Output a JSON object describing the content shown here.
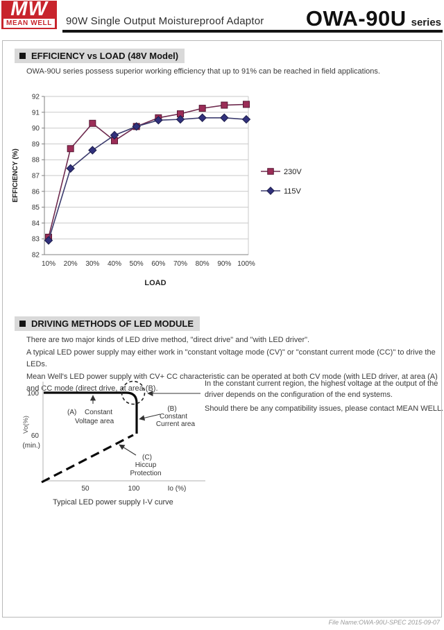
{
  "header": {
    "logo_mark": "MW",
    "logo_name": "MEAN WELL",
    "subtitle": "90W Single Output Moistureproof Adaptor",
    "product": "OWA-90U",
    "series": "series"
  },
  "colors": {
    "brand_red": "#c8242c",
    "series_230v": "#9b2d57",
    "series_115v": "#31317c",
    "grid": "#c9c9c9",
    "axis": "#808080"
  },
  "section_efficiency": {
    "title": "EFFICIENCY vs LOAD (48V Model)",
    "description": "OWA-90U series possess superior working efficiency that up to 91% can be reached in field applications."
  },
  "chart_data": {
    "type": "line",
    "title": "",
    "xlabel": "LOAD",
    "ylabel": "EFFICIENCY (%)",
    "ylim": [
      82,
      92
    ],
    "ytick_step": 1,
    "grid": true,
    "legend_position": "right",
    "categories": [
      "10%",
      "20%",
      "30%",
      "40%",
      "50%",
      "60%",
      "70%",
      "80%",
      "90%",
      "100%"
    ],
    "series": [
      {
        "name": "230V",
        "marker": "square",
        "color": "#9b2d57",
        "edge": "#571733",
        "line_color": "#6e2a4e",
        "values": [
          83.1,
          88.7,
          90.3,
          89.2,
          90.1,
          90.65,
          90.9,
          91.25,
          91.45,
          91.5
        ]
      },
      {
        "name": "115V",
        "marker": "diamond",
        "color": "#31317c",
        "edge": "#1c1c4a",
        "line_color": "#3c3c6e",
        "values": [
          82.9,
          87.45,
          88.6,
          89.55,
          90.1,
          90.5,
          90.55,
          90.65,
          90.65,
          90.55
        ]
      }
    ]
  },
  "section_driving": {
    "title": "DRIVING METHODS OF LED MODULE",
    "lines": [
      "There are two major kinds of LED drive method, \"direct drive\" and \"with LED driver\".",
      "A typical LED power supply may either work in \"constant voltage mode (CV)\" or \"constant current mode (CC)\" to drive the LEDs.",
      "Mean Well's LED power supply with CV+ CC characteristic can be operated at both CV mode (with LED driver, at area (A) and CC mode (direct drive, at area (B)."
    ],
    "note": [
      "In the constant current region, the highest voltage at the output of the driver depends on the configuration of the end systems.",
      "Should there be any compatibility issues, please contact MEAN WELL."
    ],
    "diagram": {
      "y_max": "100",
      "y_axis_label": "Vo(%)",
      "y_min": "60",
      "y_min_note": "(min.)",
      "x_tick_50": "50",
      "x_tick_100": "100",
      "x_axis_label": "Io (%)",
      "label_a_1": "(A)",
      "label_a_2": "Constant",
      "label_a_3": "Voltage area",
      "label_b_1": "(B)",
      "label_b_2": "Constant",
      "label_b_3": "Current area",
      "label_c_1": "(C)",
      "label_c_2": "Hiccup",
      "label_c_3": "Protection",
      "caption": "Typical LED power supply I-V curve"
    }
  },
  "footer": {
    "file_info": "File Name:OWA-90U-SPEC  2015-09-07"
  }
}
